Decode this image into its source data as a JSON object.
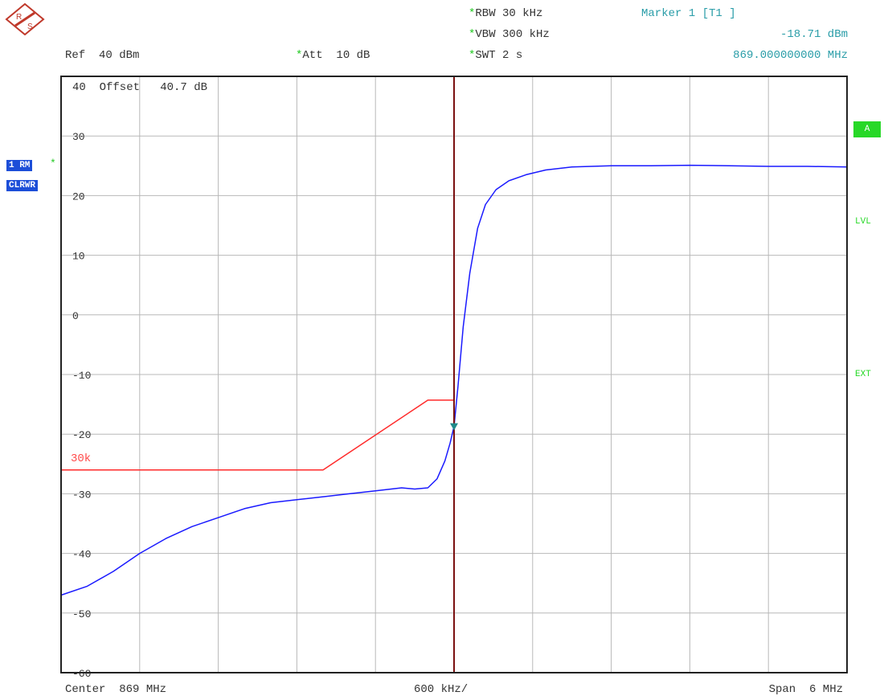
{
  "header": {
    "rbw": "RBW 30 kHz",
    "vbw": "VBW 300 kHz",
    "swt": "SWT 2 s",
    "att": "Att  10 dB",
    "ref": "Ref  40 dBm",
    "marker_title": "Marker 1 [T1 ]",
    "marker_level": "-18.71 dBm",
    "marker_freq": "869.000000000 MHz",
    "star": "*"
  },
  "plot_labels": {
    "offset_value": "40  Offset   40.7 dB",
    "limit_label": "30k",
    "trace_badge_1": "1 RM",
    "trace_badge_2": "CLRWR"
  },
  "side": {
    "a_label": "A",
    "lvl_label": "LVL",
    "ext_label": "EXT"
  },
  "footer": {
    "center": "Center  869 MHz",
    "per_div": "600 kHz/",
    "span": "Span  6 MHz"
  },
  "colors": {
    "trace": "#1a1aff",
    "limit_line": "#ff2a2a",
    "marker_line": "#7a1010",
    "marker_symbol": "#1f8a8a",
    "grid": "#b8b8b8",
    "frame": "#222222",
    "accent_green": "#27d827",
    "badge_blue": "#1c4ed8"
  },
  "chart_data": {
    "type": "line",
    "xlabel": "",
    "ylabel": "",
    "x_unit": "MHz",
    "y_unit": "dBm",
    "xlim": [
      866.0,
      872.0
    ],
    "ylim": [
      -60,
      40
    ],
    "y_ticks": [
      30,
      20,
      10,
      0,
      -10,
      -20,
      -30,
      -40,
      -50,
      -60
    ],
    "y_tick_labels": [
      "30",
      "20",
      "10",
      "0",
      "-10",
      "-20",
      "-30",
      "-40",
      "-50",
      "-60"
    ],
    "grid": true,
    "series": [
      {
        "name": "1 RM",
        "x": [
          866.0,
          866.2,
          866.4,
          866.6,
          866.8,
          867.0,
          867.2,
          867.4,
          867.6,
          867.8,
          868.0,
          868.2,
          868.4,
          868.6,
          868.7,
          868.8,
          868.87,
          868.93,
          868.97,
          869.0,
          869.03,
          869.07,
          869.12,
          869.18,
          869.24,
          869.32,
          869.42,
          869.55,
          869.7,
          869.9,
          870.2,
          870.5,
          870.8,
          871.1,
          871.4,
          871.7,
          872.0
        ],
        "y": [
          -47.0,
          -45.5,
          -43.0,
          -40.0,
          -37.5,
          -35.5,
          -34.0,
          -32.5,
          -31.5,
          -31.0,
          -30.5,
          -30.0,
          -29.5,
          -29.0,
          -29.2,
          -29.0,
          -27.5,
          -24.5,
          -21.5,
          -18.7,
          -12.0,
          -2.0,
          7.0,
          14.5,
          18.5,
          21.0,
          22.5,
          23.5,
          24.3,
          24.8,
          25.0,
          25.0,
          25.1,
          25.0,
          24.9,
          24.9,
          24.8
        ]
      },
      {
        "name": "30k",
        "x": [
          866.0,
          868.0,
          868.8,
          869.0
        ],
        "y": [
          -26.0,
          -26.0,
          -14.3,
          -14.3
        ]
      }
    ],
    "marker": {
      "x": 869.0,
      "y": -18.71
    }
  }
}
